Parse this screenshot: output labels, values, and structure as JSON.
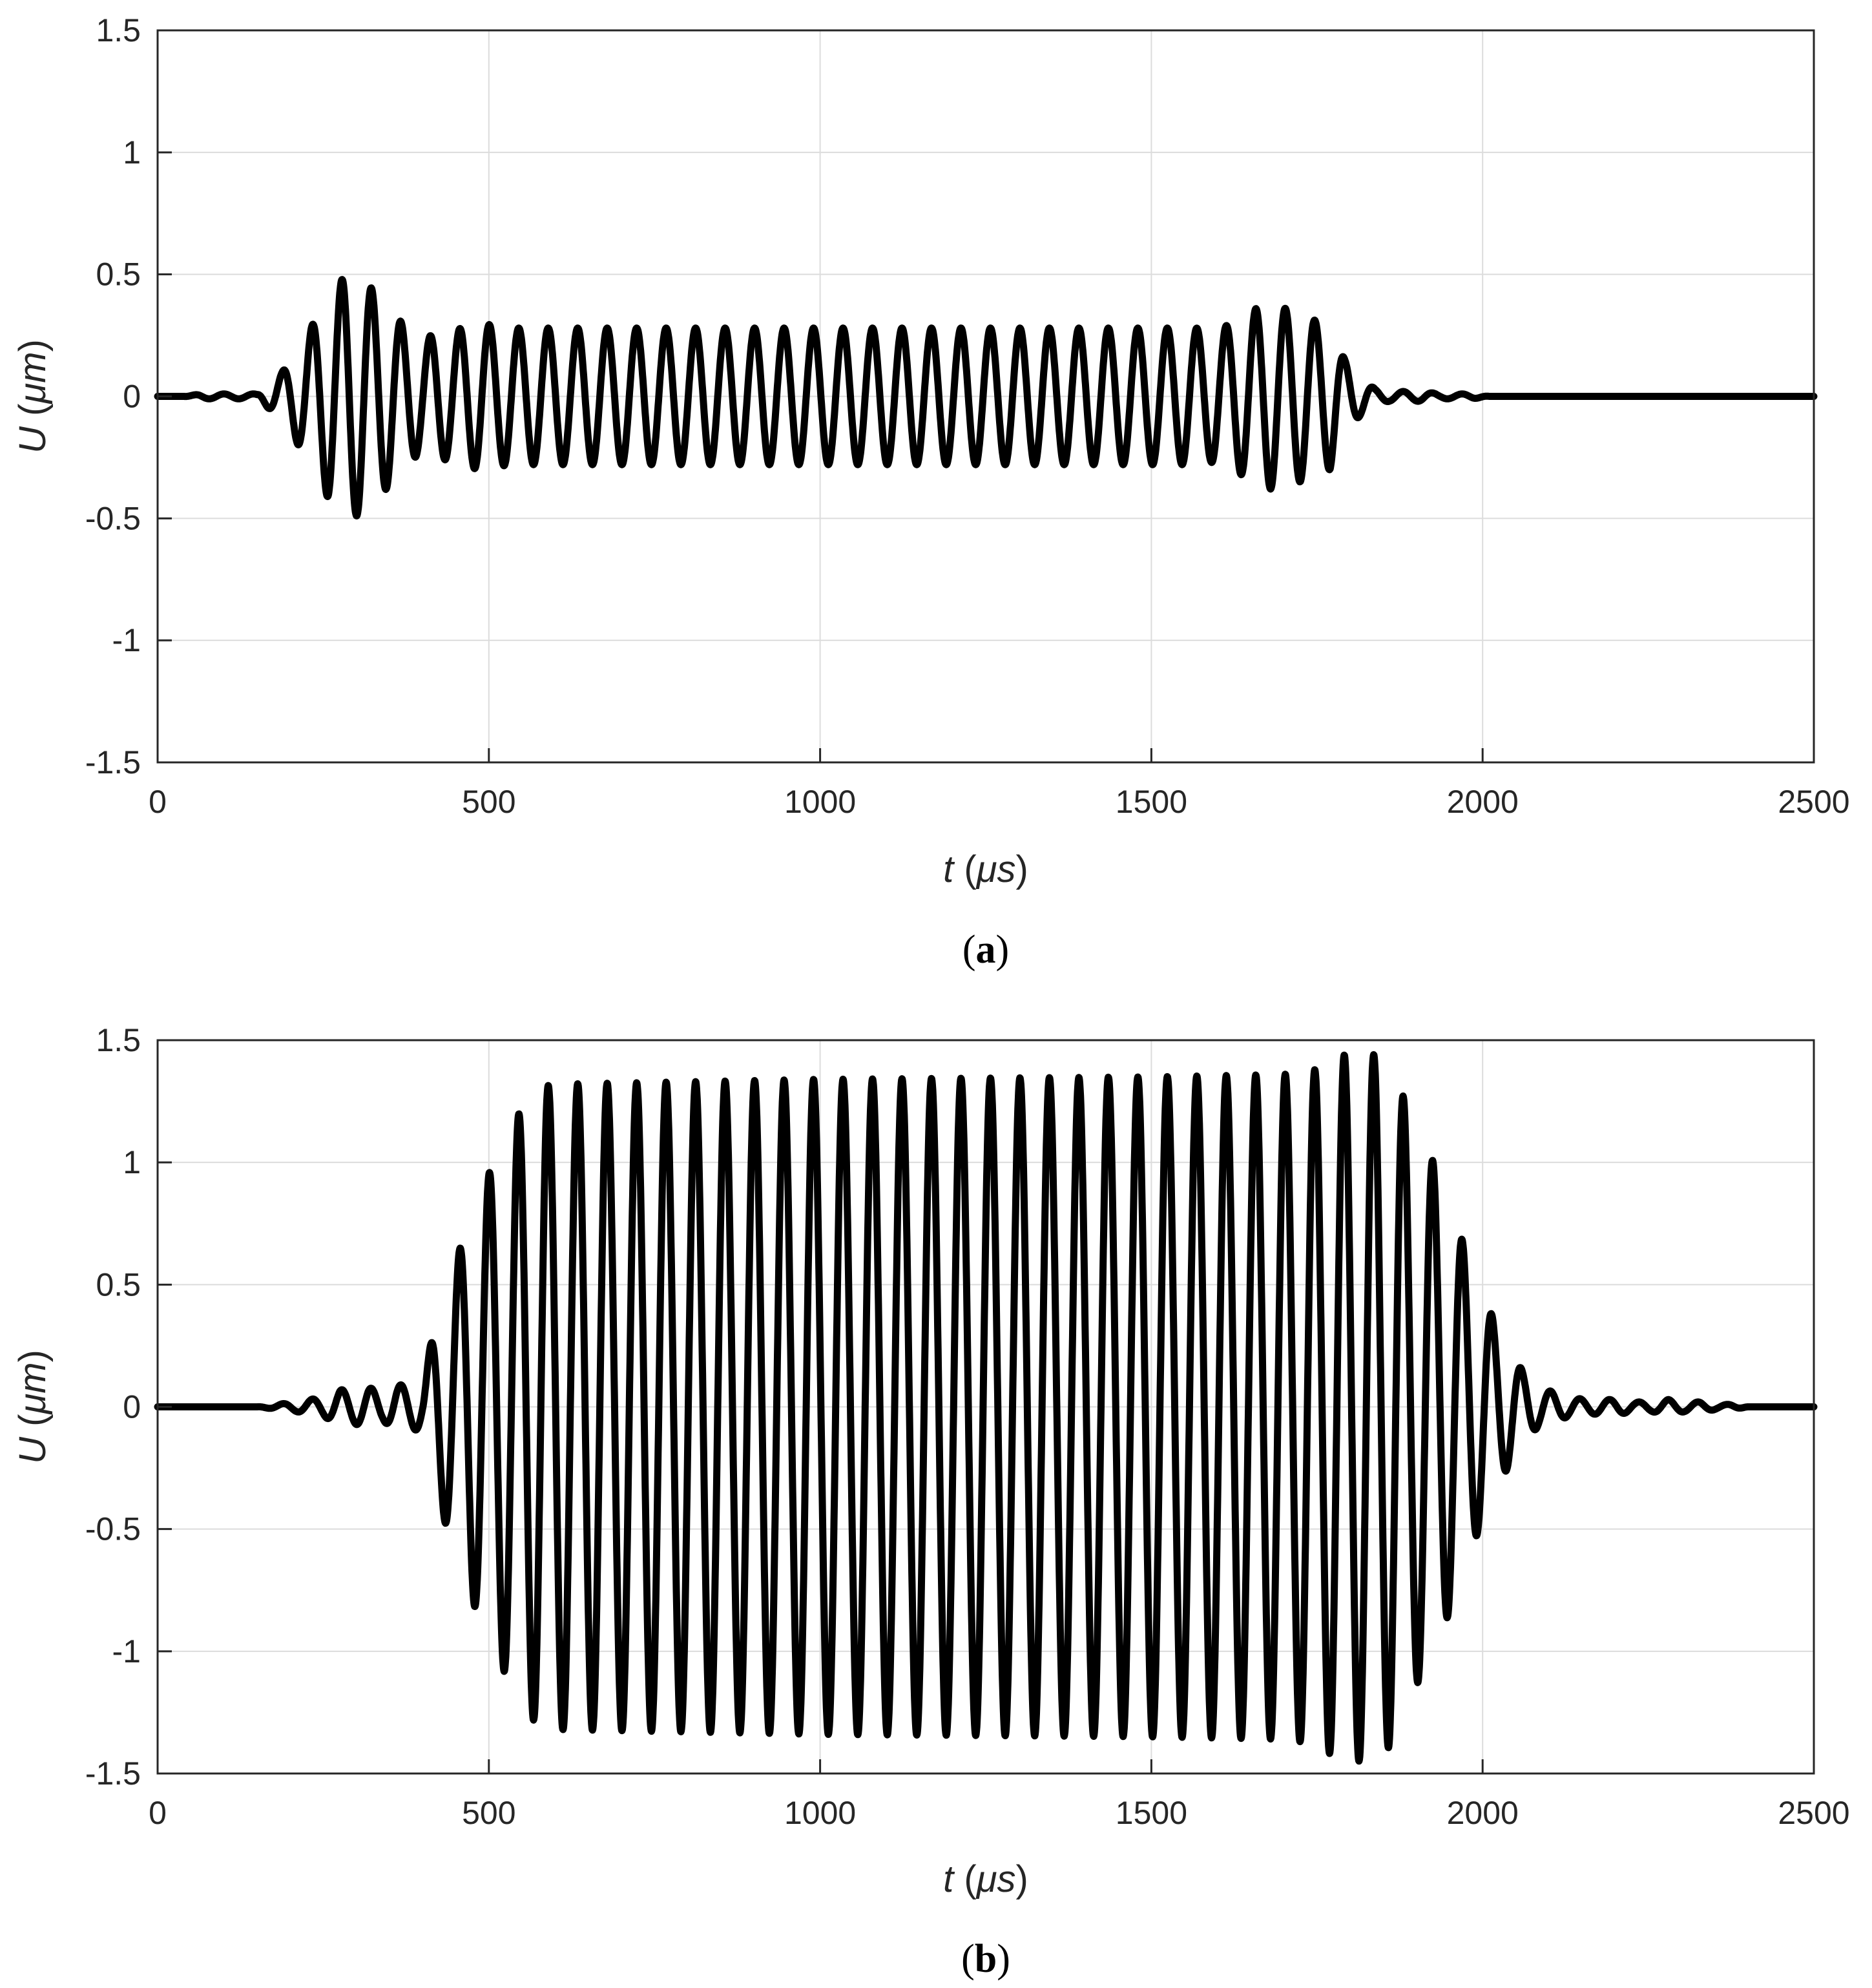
{
  "chart_data": [
    {
      "type": "line",
      "panel_label": "a",
      "xlabel": {
        "var": "t",
        "unit": "μs"
      },
      "ylabel": {
        "var": "U",
        "unit": "μm"
      },
      "xlim": [
        0,
        2500
      ],
      "ylim": [
        -1.5,
        1.5
      ],
      "xticks": [
        "0",
        "500",
        "1000",
        "1500",
        "2000",
        "2500"
      ],
      "yticks": [
        "-1.5",
        "-1",
        "-0.5",
        "0",
        "0.5",
        "1",
        "1.5"
      ],
      "grid": true,
      "line_color": "#000000",
      "series": [
        {
          "x": [
            0,
            40,
            65,
            90,
            110,
            130,
            150,
            168,
            188,
            210,
            235,
            258,
            282,
            305,
            328,
            352,
            375,
            398,
            420,
            443,
            465,
            487,
            510,
            533,
            555,
            578,
            600,
            1000,
            1500,
            1545,
            1568,
            1590,
            1613,
            1635,
            1658,
            1680,
            1703,
            1725,
            1748,
            1770,
            1792,
            1815,
            1838,
            1860,
            1885,
            1910,
            1935,
            1960,
            1985,
            2010,
            2500
          ],
          "y": [
            0.0,
            0.0,
            0.01,
            -0.01,
            0.01,
            -0.01,
            0.01,
            0.05,
            -0.1,
            0.19,
            -0.3,
            0.42,
            -0.49,
            0.49,
            -0.43,
            0.36,
            -0.28,
            0.23,
            -0.26,
            0.26,
            -0.29,
            0.3,
            -0.29,
            0.28,
            -0.28,
            0.28,
            -0.28,
            0.28,
            -0.28,
            0.28,
            -0.28,
            0.27,
            -0.29,
            0.32,
            -0.36,
            0.38,
            -0.36,
            0.35,
            -0.31,
            0.3,
            -0.15,
            0.08,
            -0.03,
            0.02,
            -0.02,
            0.02,
            -0.01,
            0.01,
            -0.01,
            0.0,
            0.0
          ],
          "carrier_period_us": 44.5
        }
      ]
    },
    {
      "type": "line",
      "panel_label": "b",
      "xlabel": {
        "var": "t",
        "unit": "μs"
      },
      "ylabel": {
        "var": "U",
        "unit": "μm"
      },
      "xlim": [
        0,
        2500
      ],
      "ylim": [
        -1.5,
        1.5
      ],
      "xticks": [
        "0",
        "500",
        "1000",
        "1500",
        "2000",
        "2500"
      ],
      "yticks": [
        "-1.5",
        "-1",
        "-0.5",
        "0",
        "0.5",
        "1",
        "1.5"
      ],
      "grid": true,
      "line_color": "#000000",
      "series": [
        {
          "x": [
            0,
            150,
            180,
            210,
            230,
            250,
            275,
            295,
            318,
            340,
            360,
            380,
            400,
            422,
            445,
            468,
            490,
            512,
            535,
            558,
            580,
            600,
            1000,
            1500,
            1700,
            1725,
            1748,
            1770,
            1792,
            1815,
            1838,
            1860,
            1882,
            1905,
            1928,
            1950,
            1972,
            1995,
            2018,
            2040,
            2062,
            2085,
            2108,
            2130,
            2155,
            2180,
            2205,
            2230,
            2255,
            2280,
            2305,
            2330,
            2355,
            2380,
            2400,
            2500
          ],
          "y": [
            0.0,
            0.0,
            0.01,
            -0.02,
            0.03,
            -0.04,
            0.07,
            -0.07,
            0.08,
            -0.06,
            0.09,
            -0.09,
            0.1,
            0.38,
            -0.56,
            0.74,
            -0.9,
            1.02,
            -1.15,
            1.26,
            -1.31,
            1.32,
            -1.34,
            1.35,
            1.36,
            -1.37,
            1.38,
            -1.42,
            1.44,
            -1.45,
            1.44,
            -1.39,
            1.26,
            -1.11,
            0.99,
            -0.84,
            0.66,
            -0.5,
            0.35,
            -0.24,
            0.14,
            -0.08,
            0.06,
            -0.04,
            0.03,
            -0.03,
            0.03,
            -0.02,
            0.02,
            -0.03,
            0.02,
            -0.02,
            0.01,
            -0.01,
            0.0,
            0.0
          ],
          "carrier_period_us": 44.5
        }
      ]
    }
  ]
}
